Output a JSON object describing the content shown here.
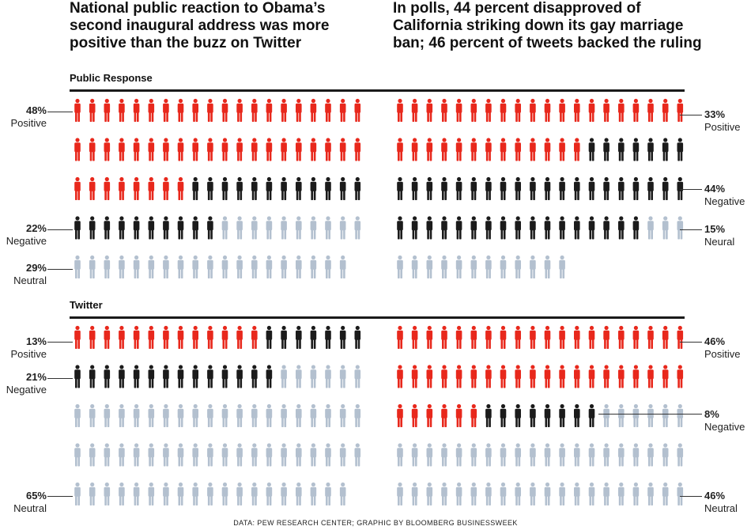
{
  "headlines": {
    "left": "National public reaction to Obama’s second inaugural address was more positive than the buzz on Twitter",
    "right": "In polls, 44 percent disapproved of California striking down its gay marriage ban; 46 percent of tweets backed the ruling"
  },
  "sections": {
    "public": "Public Response",
    "twitter": "Twitter"
  },
  "colors": {
    "positive": "#e8281c",
    "negative": "#1b1b1b",
    "neutral": "#b3c0cf",
    "rule": "#1a1a1a"
  },
  "icon": "person-icon",
  "captions": {
    "obama_public_positive": {
      "pct": "48%",
      "label": "Positive"
    },
    "obama_public_negative": {
      "pct": "22%",
      "label": "Negative"
    },
    "obama_public_neutral": {
      "pct": "29%",
      "label": "Neutral"
    },
    "marriage_public_positive": {
      "pct": "33%",
      "label": "Positive"
    },
    "marriage_public_negative": {
      "pct": "44%",
      "label": "Negative"
    },
    "marriage_public_neutral": {
      "pct": "15%",
      "label": "Neural"
    },
    "obama_twitter_positive": {
      "pct": "13%",
      "label": "Positive"
    },
    "obama_twitter_negative": {
      "pct": "21%",
      "label": "Negative"
    },
    "obama_twitter_neutral": {
      "pct": "65%",
      "label": "Neutral"
    },
    "marriage_twitter_positive": {
      "pct": "46%",
      "label": "Positive"
    },
    "marriage_twitter_negative": {
      "pct": "8%",
      "label": "Negative"
    },
    "marriage_twitter_neutral": {
      "pct": "46%",
      "label": "Neutral"
    }
  },
  "footer": "DATA: PEW RESEARCH CENTER; GRAPHIC BY BLOOMBERG BUSINESSWEEK",
  "chart_data": [
    {
      "type": "pictogram",
      "title": "National public reaction to Obama’s second inaugural address was more positive than the buzz on Twitter",
      "subtitle": "Public Response",
      "icons_per_row": 20,
      "categories": [
        "Positive",
        "Negative",
        "Neutral"
      ],
      "values": [
        48,
        22,
        29
      ]
    },
    {
      "type": "pictogram",
      "title": "In polls, 44 percent disapproved of California striking down its gay marriage ban; 46 percent of tweets backed the ruling",
      "subtitle": "Public Response",
      "icons_per_row": 20,
      "categories": [
        "Positive",
        "Negative",
        "Neural"
      ],
      "values": [
        33,
        44,
        15
      ]
    },
    {
      "type": "pictogram",
      "title": "National public reaction to Obama’s second inaugural address was more positive than the buzz on Twitter",
      "subtitle": "Twitter",
      "icons_per_row": 20,
      "categories": [
        "Positive",
        "Negative",
        "Neutral"
      ],
      "values": [
        13,
        21,
        65
      ]
    },
    {
      "type": "pictogram",
      "title": "In polls, 44 percent disapproved of California striking down its gay marriage ban; 46 percent of tweets backed the ruling",
      "subtitle": "Twitter",
      "icons_per_row": 20,
      "categories": [
        "Positive",
        "Negative",
        "Neutral"
      ],
      "values": [
        46,
        8,
        46
      ]
    }
  ]
}
